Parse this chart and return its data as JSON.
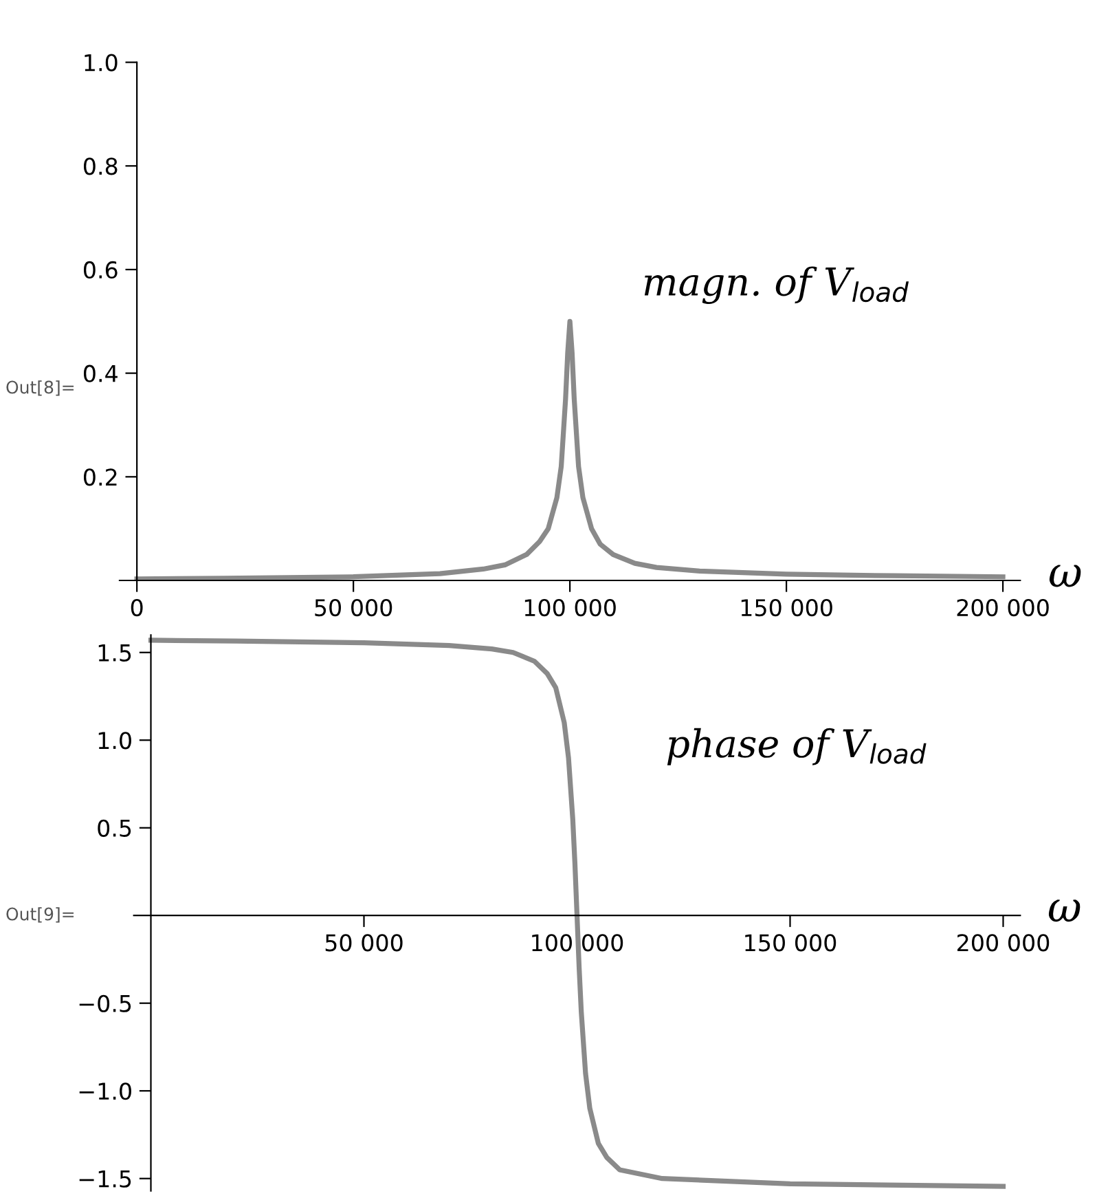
{
  "chart_data": [
    {
      "type": "line",
      "xlabel": "ω",
      "annotations": [
        "Out[8]=",
        "magn. of V$_{load}$"
      ],
      "x": [
        0,
        20000,
        50000,
        70000,
        80000,
        85000,
        90000,
        93000,
        95000,
        97000,
        98000,
        99000,
        99500,
        100000,
        100500,
        101000,
        102000,
        103000,
        105000,
        107000,
        110000,
        115000,
        120000,
        130000,
        150000,
        175000,
        200000
      ],
      "series": [
        {
          "color": "#8a8a8a",
          "values": [
            0.003,
            0.004,
            0.007,
            0.013,
            0.022,
            0.03,
            0.05,
            0.075,
            0.1,
            0.16,
            0.22,
            0.35,
            0.44,
            0.5,
            0.44,
            0.35,
            0.22,
            0.16,
            0.1,
            0.07,
            0.05,
            0.033,
            0.025,
            0.018,
            0.012,
            0.009,
            0.007
          ]
        }
      ],
      "xlim": [
        -4000,
        204000
      ],
      "ylim": [
        0,
        1.0
      ],
      "xticks": [
        0,
        {
          "value": 50000,
          "label": "50 000"
        },
        {
          "value": 100000,
          "label": "100 000"
        },
        {
          "value": 150000,
          "label": "150 000"
        },
        {
          "value": 200000,
          "label": "200 000"
        }
      ],
      "yticks": [
        0.2,
        0.4,
        0.6,
        0.8,
        {
          "value": 1.0,
          "label": "1.0"
        }
      ],
      "grid": false,
      "marker": "none",
      "line_style": "solid"
    },
    {
      "type": "line",
      "xlabel": "ω",
      "annotations": [
        "Out[9]=",
        "phase of V$_{load}$"
      ],
      "x": [
        0,
        20000,
        50000,
        70000,
        80000,
        85000,
        90000,
        93000,
        95000,
        97000,
        98000,
        99000,
        99500,
        100000,
        100500,
        101000,
        102000,
        103000,
        105000,
        107000,
        110000,
        120000,
        150000,
        200000
      ],
      "series": [
        {
          "color": "#8a8a8a",
          "values": [
            1.57,
            1.565,
            1.555,
            1.54,
            1.52,
            1.5,
            1.45,
            1.38,
            1.3,
            1.1,
            0.9,
            0.55,
            0.3,
            0,
            -0.3,
            -0.55,
            -0.9,
            -1.1,
            -1.3,
            -1.38,
            -1.45,
            -1.5,
            -1.53,
            -1.545
          ]
        }
      ],
      "xlim": [
        -4000,
        204000
      ],
      "ylim": [
        -1.57,
        1.6
      ],
      "xticks": [
        {
          "value": 50000,
          "label": "50 000"
        },
        {
          "value": 100000,
          "label": "100 000"
        },
        {
          "value": 150000,
          "label": "150 000"
        },
        {
          "value": 200000,
          "label": "200 000"
        }
      ],
      "yticks": [
        {
          "value": -1.5,
          "label": "−1.5"
        },
        {
          "value": -1.0,
          "label": "−1.0"
        },
        {
          "value": -0.5,
          "label": "−0.5"
        },
        0.5,
        {
          "value": 1.0,
          "label": "1.0"
        },
        1.5
      ],
      "grid": false,
      "marker": "none",
      "line_style": "solid"
    }
  ]
}
